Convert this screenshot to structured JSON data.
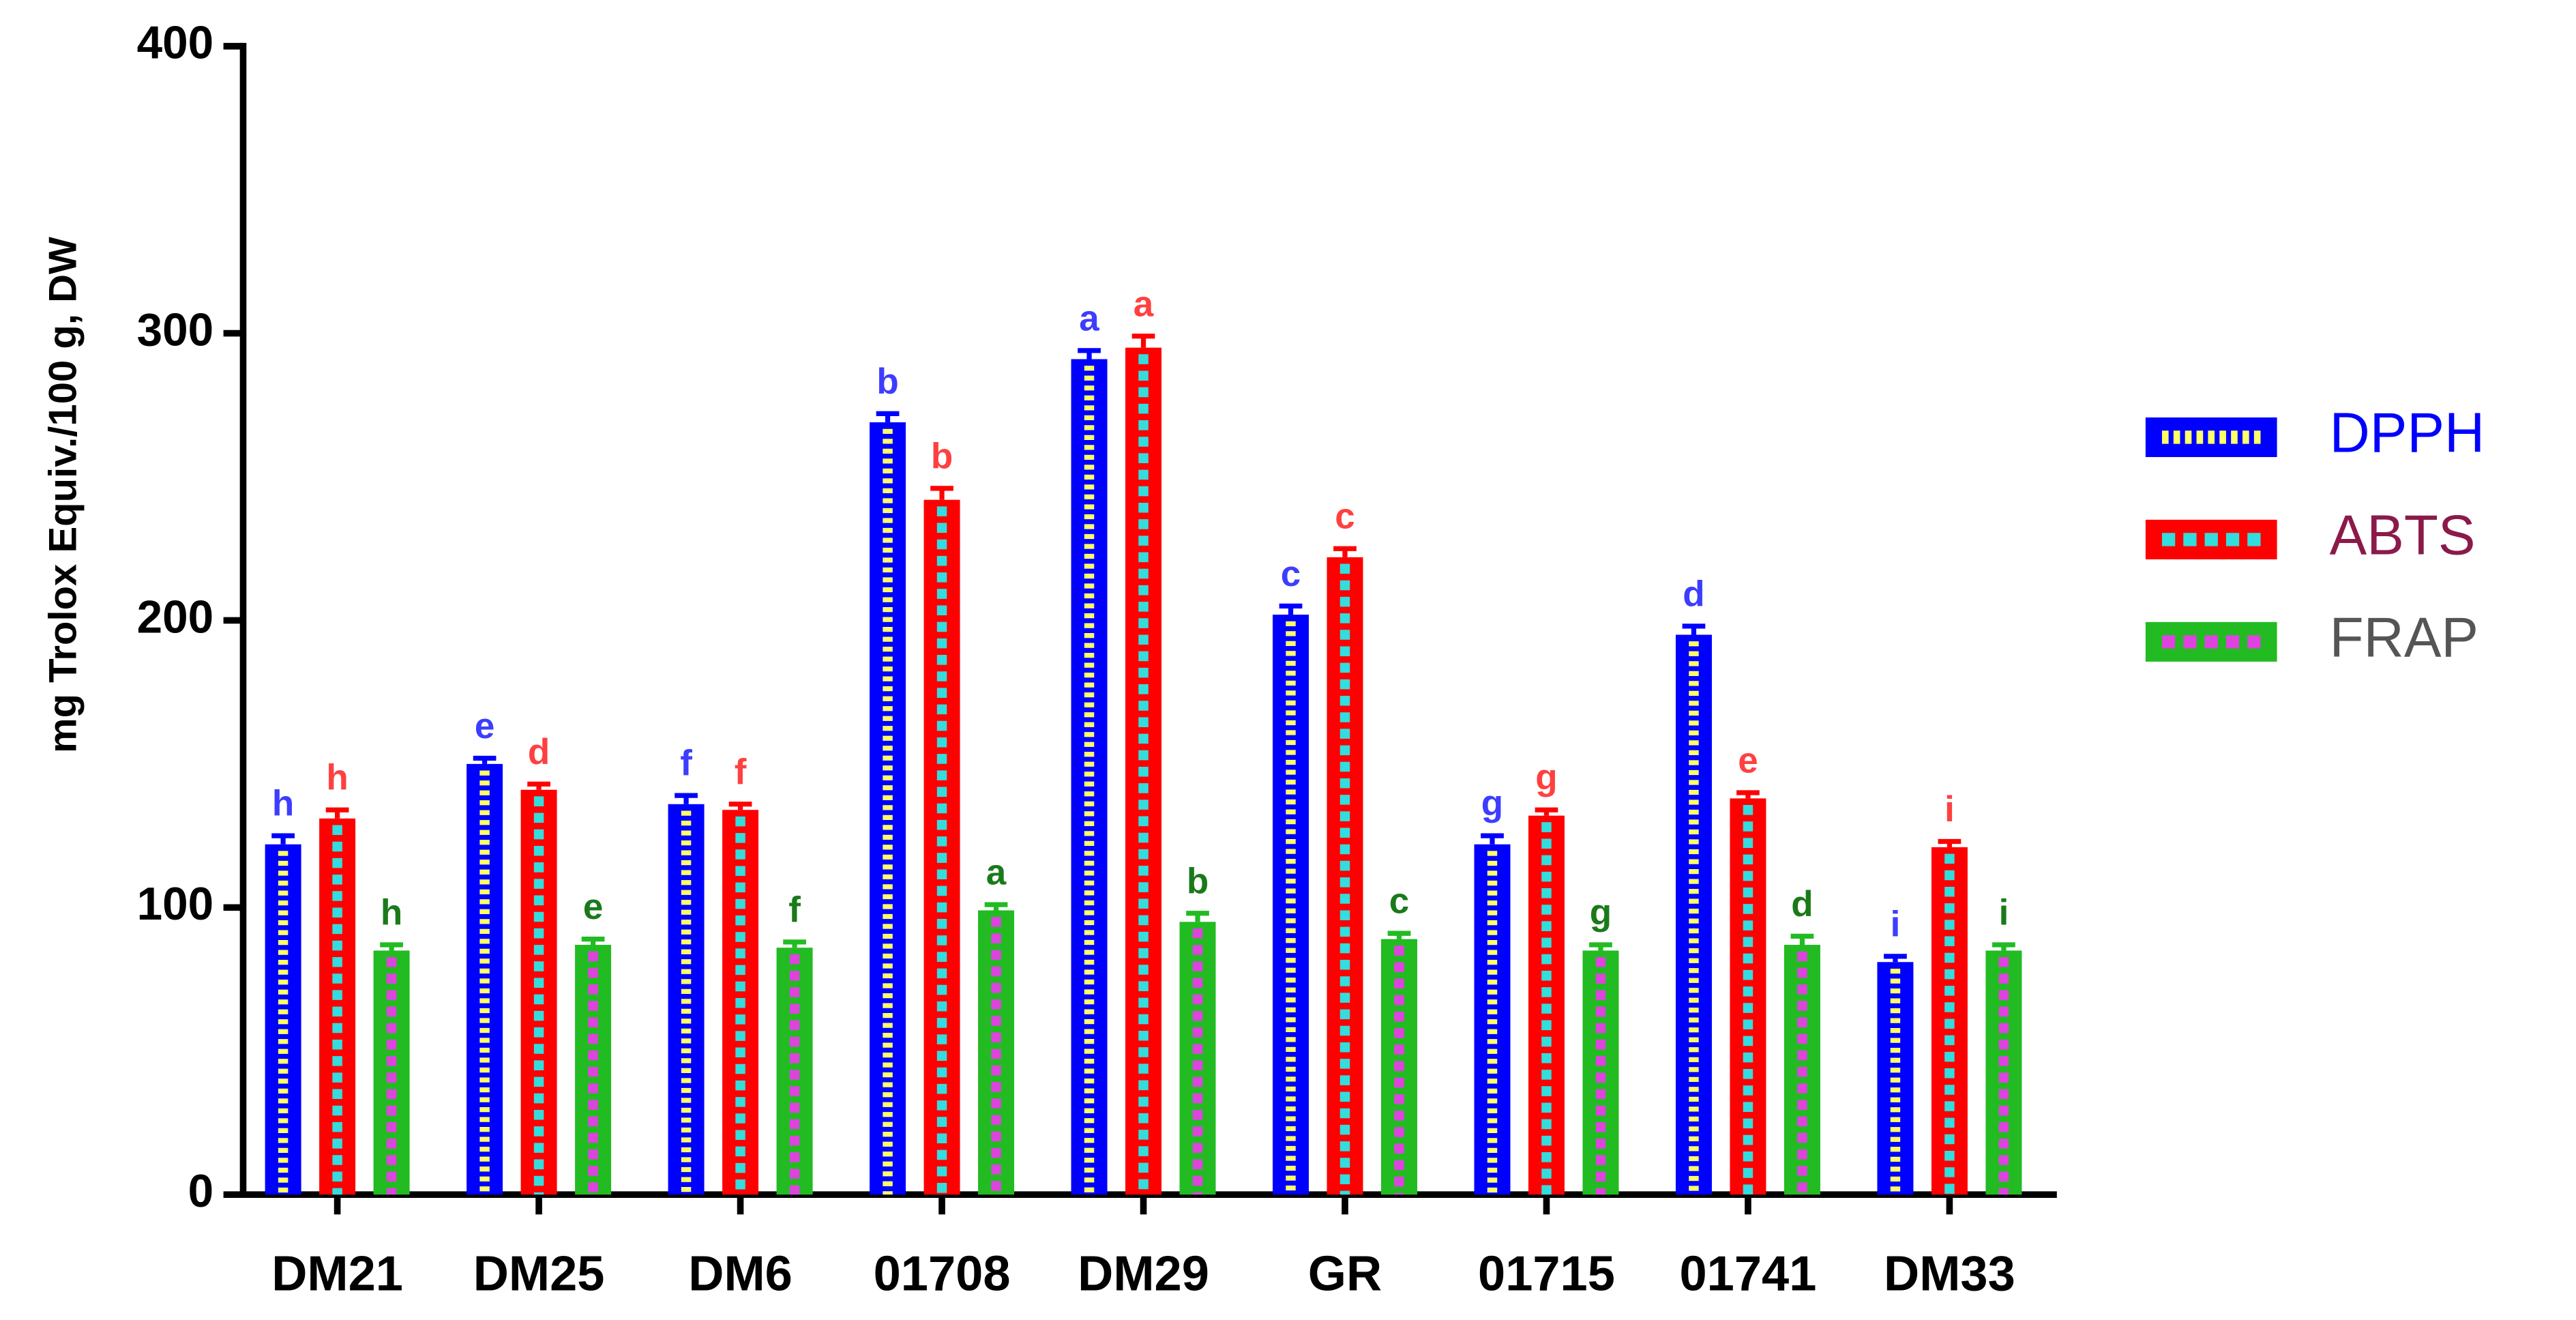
{
  "chart_data": {
    "type": "bar",
    "y_label": "mg Trolox Equiv./100 g, DW",
    "categories": [
      "DM21",
      "DM25",
      "DM6",
      "01708",
      "DM29",
      "GR",
      "01715",
      "01741",
      "DM33"
    ],
    "series": [
      {
        "name": "DPPH",
        "color": "#0000ff",
        "pattern_color": "#ffff66",
        "label_color": "#3d3dff",
        "legend_text_color": "#0000ff",
        "values": [
          122,
          150,
          136,
          269,
          291,
          202,
          122,
          195,
          81
        ],
        "errors": [
          3,
          2,
          3,
          3,
          3,
          3,
          3,
          3,
          2
        ],
        "letters": [
          "h",
          "e",
          "f",
          "b",
          "a",
          "c",
          "g",
          "d",
          "i"
        ]
      },
      {
        "name": "ABTS",
        "color": "#ff0000",
        "pattern_color": "#33dddd",
        "label_color": "#ff4040",
        "legend_text_color": "#8b1a4a",
        "values": [
          131,
          141,
          134,
          242,
          295,
          222,
          132,
          138,
          121
        ],
        "errors": [
          3,
          2,
          2,
          4,
          4,
          3,
          2,
          2,
          2
        ],
        "letters": [
          "h",
          "d",
          "f",
          "b",
          "a",
          "c",
          "g",
          "e",
          "i"
        ]
      },
      {
        "name": "FRAP",
        "color": "#22bb22",
        "pattern_color": "#dd44dd",
        "label_color": "#1a7a1a",
        "legend_text_color": "#555555",
        "values": [
          85,
          87,
          86,
          99,
          95,
          89,
          85,
          87,
          85
        ],
        "errors": [
          2,
          2,
          2,
          2,
          3,
          2,
          2,
          3,
          2
        ],
        "letters": [
          "h",
          "e",
          "f",
          "a",
          "b",
          "c",
          "g",
          "d",
          "i"
        ]
      }
    ],
    "ylim": [
      0,
      400
    ],
    "yticks": [
      0,
      100,
      200,
      300,
      400
    ],
    "legend": "right"
  }
}
